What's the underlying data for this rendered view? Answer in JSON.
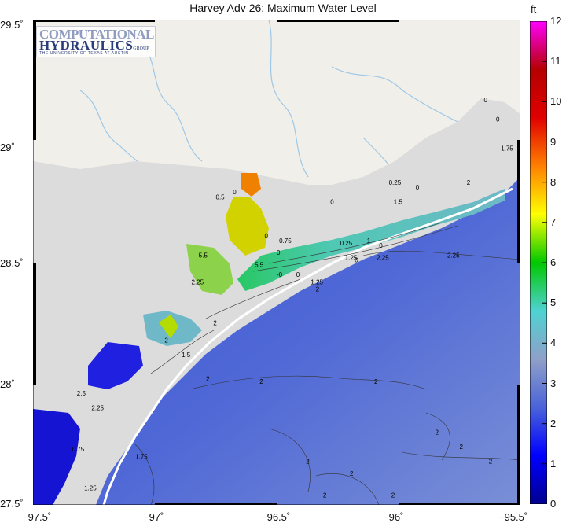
{
  "title": "Harvey Adv 26: Maximum Water Level",
  "logo": {
    "line1": "COMPUTATIONAL",
    "line2": "HYDRAULICS",
    "group": "GROUP",
    "line3": "THE UNIVERSITY OF TEXAS AT AUSTIN"
  },
  "axes": {
    "lat_ticks": [
      "29.5˚",
      "29˚",
      "28.5˚",
      "28˚",
      "27.5˚"
    ],
    "lon_ticks": [
      "−97.5˚",
      "−97˚",
      "−96.5˚",
      "−96˚",
      "−95.5˚"
    ],
    "lat_range": [
      27.5,
      29.5
    ],
    "lon_range": [
      -97.5,
      -95.5
    ]
  },
  "colorbar": {
    "unit": "ft",
    "ticks": [
      "12",
      "11",
      "10",
      "9",
      "8",
      "7",
      "6",
      "5",
      "4",
      "3",
      "2",
      "1",
      "0"
    ],
    "range": [
      0,
      12
    ],
    "colors": [
      "#00008f",
      "#0000ff",
      "#4a63d8",
      "#8fa0c8",
      "#4fd2d2",
      "#00c800",
      "#ffff00",
      "#ff8000",
      "#e00000",
      "#b40000",
      "#ff00ff"
    ]
  },
  "contour_labels": [
    {
      "text": "0",
      "lon": -95.65,
      "lat": 29.16
    },
    {
      "text": "0",
      "lon": -95.6,
      "lat": 29.08
    },
    {
      "text": "1.75",
      "lon": -95.58,
      "lat": 28.96
    },
    {
      "text": "2",
      "lon": -95.72,
      "lat": 28.82
    },
    {
      "text": "0.25",
      "lon": -96.04,
      "lat": 28.82
    },
    {
      "text": "0",
      "lon": -95.93,
      "lat": 28.8
    },
    {
      "text": "1.5",
      "lon": -96.02,
      "lat": 28.74
    },
    {
      "text": "0",
      "lon": -96.28,
      "lat": 28.74
    },
    {
      "text": "0.5",
      "lon": -96.75,
      "lat": 28.76
    },
    {
      "text": "0",
      "lon": -96.68,
      "lat": 28.78
    },
    {
      "text": "0",
      "lon": -96.55,
      "lat": 28.6
    },
    {
      "text": "0.75",
      "lon": -96.49,
      "lat": 28.58
    },
    {
      "text": "0.25",
      "lon": -96.24,
      "lat": 28.57
    },
    {
      "text": "1",
      "lon": -96.13,
      "lat": 28.58
    },
    {
      "text": "0",
      "lon": -96.08,
      "lat": 28.56
    },
    {
      "text": "1.25",
      "lon": -96.22,
      "lat": 28.51
    },
    {
      "text": "0",
      "lon": -96.18,
      "lat": 28.5
    },
    {
      "text": "2.25",
      "lon": -96.09,
      "lat": 28.51
    },
    {
      "text": "2.25",
      "lon": -95.8,
      "lat": 28.52
    },
    {
      "text": "5.5",
      "lon": -96.82,
      "lat": 28.52
    },
    {
      "text": "0",
      "lon": -96.5,
      "lat": 28.53
    },
    {
      "text": "5.5",
      "lon": -96.59,
      "lat": 28.48
    },
    {
      "text": "-0",
      "lon": -96.5,
      "lat": 28.44
    },
    {
      "text": "0",
      "lon": -96.42,
      "lat": 28.44
    },
    {
      "text": "2.25",
      "lon": -96.85,
      "lat": 28.41
    },
    {
      "text": "1.25",
      "lon": -96.36,
      "lat": 28.41
    },
    {
      "text": "2",
      "lon": -96.34,
      "lat": 28.38
    },
    {
      "text": "2",
      "lon": -96.76,
      "lat": 28.24
    },
    {
      "text": "2",
      "lon": -96.96,
      "lat": 28.17
    },
    {
      "text": "1.5",
      "lon": -96.89,
      "lat": 28.11
    },
    {
      "text": "2",
      "lon": -96.79,
      "lat": 28.01
    },
    {
      "text": "2",
      "lon": -96.57,
      "lat": 28.0
    },
    {
      "text": "2",
      "lon": -96.1,
      "lat": 28.0
    },
    {
      "text": "2.5",
      "lon": -97.32,
      "lat": 27.95
    },
    {
      "text": "2.25",
      "lon": -97.26,
      "lat": 27.89
    },
    {
      "text": "0.75",
      "lon": -97.34,
      "lat": 27.72
    },
    {
      "text": "1.75",
      "lon": -97.08,
      "lat": 27.69
    },
    {
      "text": "2",
      "lon": -95.85,
      "lat": 27.79
    },
    {
      "text": "2",
      "lon": -95.75,
      "lat": 27.73
    },
    {
      "text": "2",
      "lon": -96.38,
      "lat": 27.67
    },
    {
      "text": "2",
      "lon": -95.63,
      "lat": 27.67
    },
    {
      "text": "2",
      "lon": -96.2,
      "lat": 27.62
    },
    {
      "text": "1.25",
      "lon": -97.29,
      "lat": 27.56
    },
    {
      "text": "2",
      "lon": -96.31,
      "lat": 27.53
    },
    {
      "text": "2",
      "lon": -96.03,
      "lat": 27.53
    }
  ]
}
